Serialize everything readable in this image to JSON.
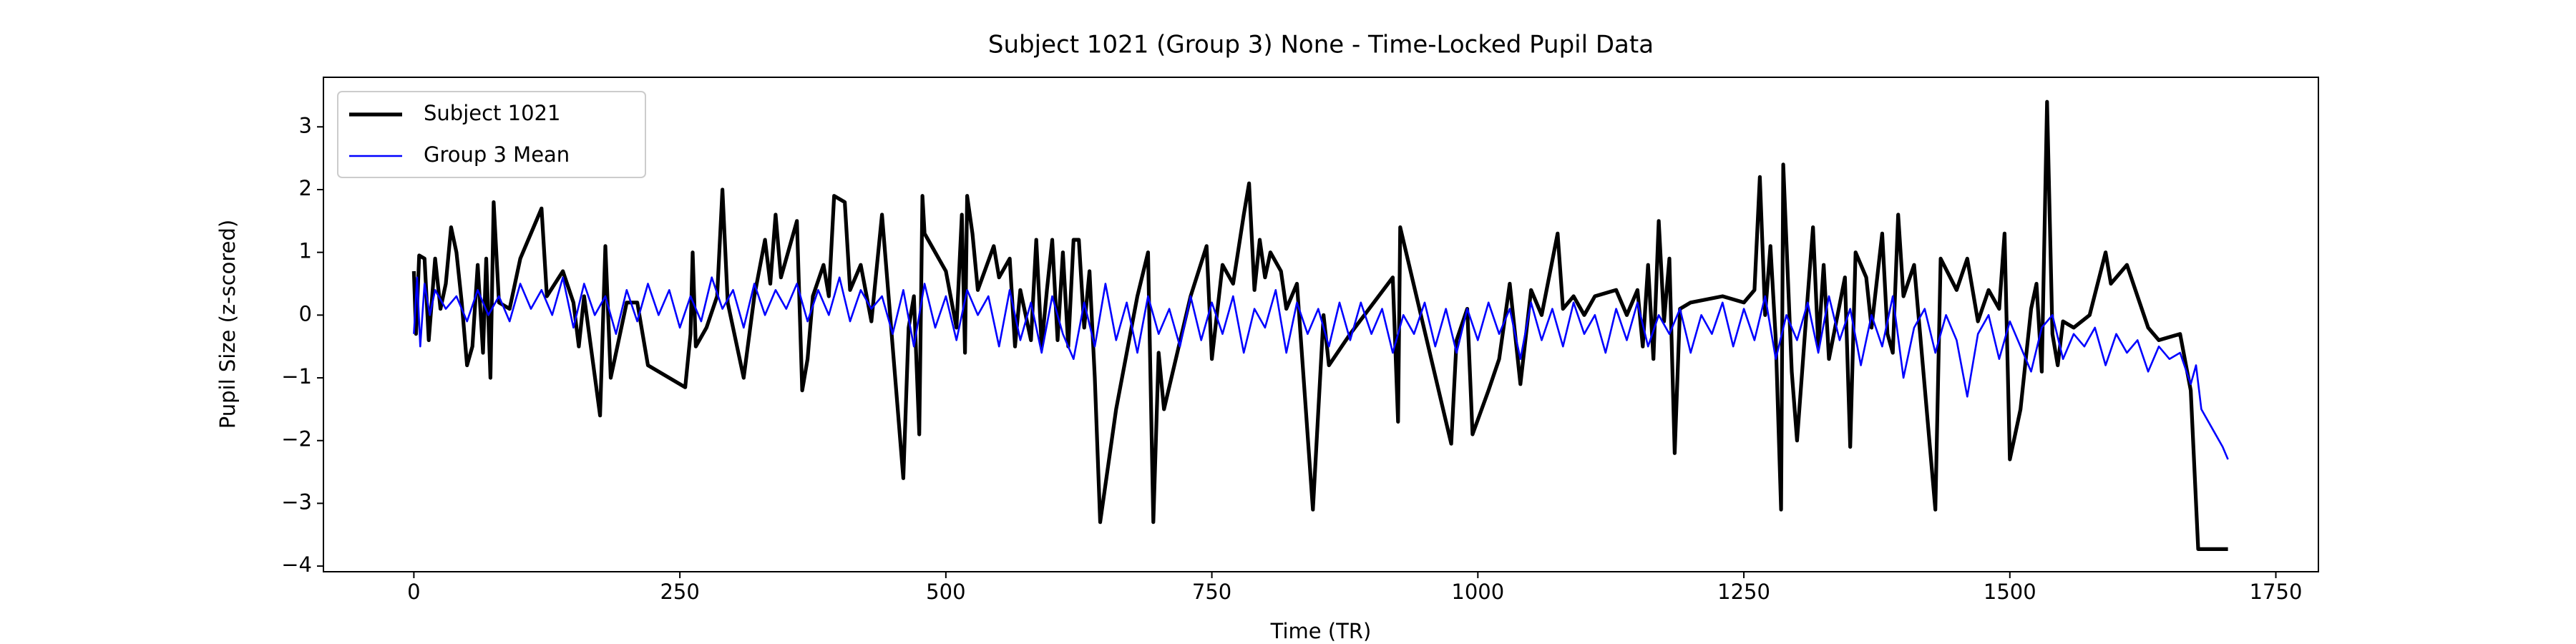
{
  "chart_data": {
    "type": "line",
    "title": "Subject 1021 (Group 3) None - Time-Locked Pupil Data",
    "xlabel": "Time (TR)",
    "ylabel": "Pupil Size (z-scored)",
    "xlim": [
      -85,
      1790
    ],
    "ylim": [
      -4.09,
      3.79
    ],
    "xticks": [
      0,
      250,
      500,
      750,
      1000,
      1250,
      1500,
      1750
    ],
    "yticks": [
      {
        "value": -4,
        "label": "−4"
      },
      {
        "value": -3,
        "label": "−3"
      },
      {
        "value": -2,
        "label": "−2"
      },
      {
        "value": -1,
        "label": "−1"
      },
      0,
      1,
      2,
      3
    ],
    "legend": "upper left",
    "grid": false,
    "series": [
      {
        "name": "Subject 1021",
        "color": "#000000",
        "width": 5.2,
        "x": [
          0,
          2,
          5,
          10,
          14,
          20,
          25,
          30,
          35,
          40,
          45,
          50,
          55,
          60,
          65,
          68,
          72,
          75,
          80,
          90,
          100,
          120,
          125,
          140,
          150,
          155,
          160,
          175,
          180,
          185,
          200,
          210,
          220,
          255,
          260,
          262,
          265,
          275,
          285,
          290,
          295,
          310,
          320,
          330,
          335,
          340,
          345,
          360,
          365,
          370,
          375,
          385,
          390,
          395,
          405,
          410,
          420,
          430,
          440,
          460,
          465,
          470,
          475,
          478,
          480,
          500,
          510,
          515,
          518,
          520,
          525,
          530,
          545,
          550,
          560,
          565,
          570,
          580,
          585,
          590,
          595,
          600,
          605,
          610,
          615,
          620,
          625,
          630,
          635,
          640,
          645,
          660,
          680,
          690,
          695,
          700,
          705,
          730,
          745,
          750,
          760,
          770,
          780,
          785,
          790,
          795,
          800,
          805,
          815,
          820,
          830,
          845,
          855,
          860,
          880,
          920,
          925,
          927,
          975,
          980,
          990,
          995,
          1010,
          1020,
          1030,
          1040,
          1050,
          1060,
          1075,
          1080,
          1090,
          1100,
          1110,
          1130,
          1140,
          1150,
          1155,
          1160,
          1165,
          1170,
          1175,
          1180,
          1185,
          1190,
          1200,
          1230,
          1250,
          1260,
          1265,
          1270,
          1275,
          1280,
          1285,
          1287,
          1295,
          1300,
          1310,
          1315,
          1320,
          1325,
          1330,
          1345,
          1350,
          1355,
          1365,
          1370,
          1380,
          1385,
          1390,
          1395,
          1400,
          1410,
          1430,
          1435,
          1450,
          1460,
          1470,
          1480,
          1490,
          1495,
          1500,
          1510,
          1520,
          1525,
          1530,
          1535,
          1540,
          1545,
          1550,
          1560,
          1575,
          1590,
          1595,
          1610,
          1620,
          1630,
          1640,
          1660,
          1670,
          1677,
          1690,
          1705
        ],
        "values": [
          0.7,
          -0.3,
          0.95,
          0.9,
          -0.4,
          0.9,
          0.1,
          0.5,
          1.4,
          1.0,
          0.2,
          -0.8,
          -0.5,
          0.8,
          -0.6,
          0.9,
          -1.0,
          1.8,
          0.2,
          0.1,
          0.9,
          1.7,
          0.3,
          0.7,
          0.2,
          -0.5,
          0.3,
          -1.6,
          1.1,
          -1.0,
          0.2,
          0.2,
          -0.8,
          -1.15,
          -0.3,
          1.0,
          -0.5,
          -0.2,
          0.3,
          2.0,
          0.2,
          -1.0,
          0.3,
          1.2,
          0.5,
          1.6,
          0.6,
          1.5,
          -1.2,
          -0.7,
          0.3,
          0.8,
          0.3,
          1.9,
          1.8,
          0.4,
          0.8,
          -0.1,
          1.6,
          -2.6,
          -0.2,
          0.3,
          -1.9,
          1.9,
          1.3,
          0.7,
          -0.2,
          1.6,
          -0.6,
          1.9,
          1.3,
          0.4,
          1.1,
          0.6,
          0.9,
          -0.5,
          0.4,
          -0.4,
          1.2,
          -0.5,
          0.4,
          1.2,
          -0.4,
          1.0,
          -0.5,
          1.2,
          1.2,
          -0.2,
          0.7,
          -1.0,
          -3.3,
          -1.5,
          0.3,
          1.0,
          -3.3,
          -0.6,
          -1.5,
          0.3,
          1.1,
          -0.7,
          0.8,
          0.5,
          1.6,
          2.1,
          0.4,
          1.2,
          0.6,
          1.0,
          0.7,
          0.1,
          0.5,
          -3.1,
          0.0,
          -0.8,
          -0.3,
          0.6,
          -1.7,
          1.4,
          -2.05,
          -0.4,
          0.1,
          -1.9,
          -1.2,
          -0.7,
          0.5,
          -1.1,
          0.4,
          0.0,
          1.3,
          0.1,
          0.3,
          0.0,
          0.3,
          0.4,
          0.0,
          0.4,
          -0.5,
          0.8,
          -0.7,
          1.5,
          -0.1,
          0.9,
          -2.2,
          0.1,
          0.2,
          0.3,
          0.2,
          0.4,
          2.2,
          0.0,
          1.1,
          -0.4,
          -3.1,
          2.4,
          -0.9,
          -2.0,
          0.3,
          1.4,
          -0.5,
          0.8,
          -0.7,
          0.6,
          -2.1,
          1.0,
          0.6,
          -0.2,
          1.3,
          -0.3,
          -0.6,
          1.6,
          0.3,
          0.8,
          -3.1,
          0.9,
          0.4,
          0.9,
          -0.1,
          0.4,
          0.1,
          1.3,
          -2.3,
          -1.5,
          0.1,
          0.5,
          -0.9,
          3.4,
          -0.3,
          -0.8,
          -0.1,
          -0.2,
          0.0,
          1.0,
          0.5,
          0.8,
          0.3,
          -0.2,
          -0.4,
          -0.3,
          -1.2,
          -3.73,
          -3.73,
          -3.73
        ]
      },
      {
        "name": "Group 3 Mean",
        "color": "#0000ff",
        "width": 2.6,
        "x": [
          0,
          3,
          6,
          10,
          15,
          20,
          30,
          40,
          50,
          60,
          70,
          80,
          90,
          100,
          110,
          120,
          130,
          140,
          150,
          160,
          170,
          180,
          190,
          200,
          210,
          220,
          230,
          240,
          250,
          260,
          270,
          280,
          290,
          300,
          310,
          320,
          330,
          340,
          350,
          360,
          370,
          380,
          390,
          400,
          410,
          420,
          430,
          440,
          450,
          460,
          470,
          480,
          490,
          500,
          510,
          520,
          530,
          540,
          550,
          560,
          570,
          580,
          590,
          600,
          610,
          620,
          630,
          640,
          650,
          660,
          670,
          680,
          690,
          700,
          710,
          720,
          730,
          740,
          750,
          760,
          770,
          780,
          790,
          800,
          810,
          820,
          830,
          840,
          850,
          860,
          870,
          880,
          890,
          900,
          910,
          920,
          930,
          940,
          950,
          960,
          970,
          980,
          990,
          1000,
          1010,
          1020,
          1030,
          1040,
          1050,
          1060,
          1070,
          1080,
          1090,
          1100,
          1110,
          1120,
          1130,
          1140,
          1150,
          1160,
          1170,
          1180,
          1190,
          1200,
          1210,
          1220,
          1230,
          1240,
          1250,
          1260,
          1270,
          1280,
          1290,
          1300,
          1310,
          1320,
          1330,
          1340,
          1350,
          1360,
          1370,
          1380,
          1390,
          1400,
          1410,
          1420,
          1430,
          1440,
          1450,
          1460,
          1470,
          1480,
          1490,
          1500,
          1510,
          1520,
          1530,
          1540,
          1550,
          1560,
          1570,
          1580,
          1590,
          1600,
          1610,
          1620,
          1630,
          1640,
          1650,
          1660,
          1670,
          1675,
          1680,
          1690,
          1700,
          1705
        ],
        "values": [
          -0.3,
          0.6,
          -0.5,
          0.5,
          0.0,
          0.4,
          0.1,
          0.3,
          -0.1,
          0.4,
          0.0,
          0.3,
          -0.1,
          0.5,
          0.1,
          0.4,
          0.0,
          0.6,
          -0.2,
          0.5,
          0.0,
          0.3,
          -0.3,
          0.4,
          -0.1,
          0.5,
          0.0,
          0.4,
          -0.2,
          0.3,
          -0.1,
          0.6,
          0.1,
          0.4,
          -0.2,
          0.5,
          0.0,
          0.4,
          0.1,
          0.5,
          -0.1,
          0.4,
          0.0,
          0.6,
          -0.1,
          0.4,
          0.1,
          0.3,
          -0.3,
          0.4,
          -0.5,
          0.5,
          -0.2,
          0.3,
          -0.4,
          0.4,
          0.0,
          0.3,
          -0.5,
          0.4,
          -0.4,
          0.2,
          -0.6,
          0.3,
          -0.3,
          -0.7,
          0.2,
          -0.5,
          0.5,
          -0.4,
          0.2,
          -0.6,
          0.3,
          -0.3,
          0.1,
          -0.5,
          0.3,
          -0.4,
          0.2,
          -0.3,
          0.3,
          -0.6,
          0.1,
          -0.2,
          0.4,
          -0.6,
          0.2,
          -0.3,
          0.1,
          -0.5,
          0.2,
          -0.4,
          0.2,
          -0.3,
          0.1,
          -0.6,
          0.0,
          -0.3,
          0.2,
          -0.5,
          0.1,
          -0.6,
          0.1,
          -0.4,
          0.2,
          -0.3,
          0.1,
          -0.7,
          0.2,
          -0.4,
          0.1,
          -0.5,
          0.2,
          -0.3,
          0.0,
          -0.6,
          0.1,
          -0.4,
          0.2,
          -0.5,
          0.0,
          -0.3,
          0.1,
          -0.6,
          0.0,
          -0.3,
          0.2,
          -0.5,
          0.1,
          -0.4,
          0.3,
          -0.7,
          0.0,
          -0.4,
          0.2,
          -0.6,
          0.3,
          -0.4,
          0.1,
          -0.8,
          0.0,
          -0.5,
          0.3,
          -1.0,
          -0.2,
          0.1,
          -0.6,
          0.0,
          -0.4,
          -1.3,
          -0.3,
          0.0,
          -0.7,
          -0.1,
          -0.5,
          -0.9,
          -0.2,
          0.0,
          -0.7,
          -0.3,
          -0.5,
          -0.2,
          -0.8,
          -0.3,
          -0.6,
          -0.4,
          -0.9,
          -0.5,
          -0.7,
          -0.6,
          -1.1,
          -0.8,
          -1.5,
          -1.8,
          -2.1,
          -2.3
        ]
      }
    ]
  }
}
